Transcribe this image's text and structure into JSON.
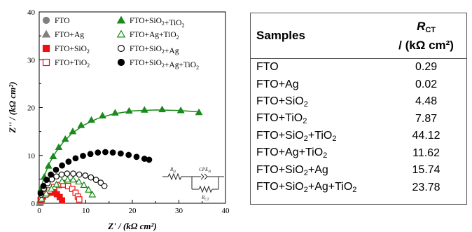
{
  "chart_data": [
    {
      "type": "scatter",
      "xlabel": "Z' / (kΩ cm²)",
      "ylabel": "Z'' / (kΩ cm²)",
      "xlim": [
        0,
        40
      ],
      "ylim": [
        0,
        40
      ],
      "x_ticks": [
        "0",
        "10",
        "20",
        "30",
        "40"
      ],
      "y_ticks": [
        "0",
        "10",
        "20",
        "30",
        "40"
      ],
      "legend_placement": "top-left",
      "inset_labels": {
        "r_s": "R",
        "r_s_sub": "Ω",
        "cpe": "CPE",
        "cpe_sub": "dl",
        "r_ct": "R",
        "r_ct_sub": "CT"
      },
      "series": [
        {
          "name": "FTO",
          "marker": "filled-circle",
          "color": "#808080",
          "x": [
            0.1,
            0.2,
            0.3,
            0.4
          ],
          "y": [
            0.05,
            0.1,
            0.1,
            0.05
          ]
        },
        {
          "name": "FTO+Ag",
          "marker": "filled-triangle",
          "color": "#808080",
          "x": [
            0.05,
            0.1,
            0.15
          ],
          "y": [
            0.02,
            0.03,
            0.02
          ]
        },
        {
          "name": "FTO+SiO₂",
          "marker": "filled-square",
          "color": "#ee1111",
          "x": [
            0.3,
            0.8,
            1.4,
            2.0,
            2.6,
            3.2,
            3.8,
            4.4,
            4.9
          ],
          "y": [
            0.7,
            1.4,
            1.9,
            2.2,
            2.3,
            2.2,
            1.9,
            1.3,
            0.6
          ]
        },
        {
          "name": "FTO+TiO₂",
          "marker": "open-square",
          "color": "#ee1111",
          "x": [
            0.5,
            1.3,
            2.2,
            3.2,
            4.2,
            5.2,
            6.2,
            7.1,
            7.8,
            8.3,
            8.6
          ],
          "y": [
            0.8,
            1.8,
            2.7,
            3.4,
            3.8,
            3.9,
            3.6,
            3.0,
            2.2,
            1.4,
            0.8
          ]
        },
        {
          "name": "FTO+SiO₂+TiO₂",
          "marker": "filled-triangle",
          "color": "#1a8a1a",
          "x": [
            0.4,
            1.1,
            2.0,
            3.0,
            4.2,
            5.6,
            7.2,
            9.0,
            11.2,
            13.6,
            16.3,
            19.3,
            22.6,
            26.4,
            30.4,
            34.3
          ],
          "y": [
            3.0,
            5.5,
            7.8,
            9.8,
            11.7,
            13.4,
            15.0,
            16.3,
            17.4,
            18.3,
            18.9,
            19.3,
            19.5,
            19.6,
            19.4,
            19.0
          ]
        },
        {
          "name": "FTO+Ag+TiO₂",
          "marker": "open-triangle",
          "color": "#1a8a1a",
          "x": [
            0.5,
            1.5,
            2.6,
            3.7,
            4.9,
            6.1,
            7.3,
            8.5,
            9.6,
            10.6,
            11.4
          ],
          "y": [
            0.9,
            2.0,
            3.0,
            3.9,
            4.6,
            4.9,
            4.9,
            4.5,
            3.8,
            2.8,
            1.8
          ]
        },
        {
          "name": "FTO+SiO₂+Ag",
          "marker": "open-circle",
          "color": "#111111",
          "x": [
            0.4,
            1.0,
            1.8,
            2.7,
            3.7,
            4.8,
            6.0,
            7.3,
            8.6,
            9.9,
            11.1,
            12.2,
            13.2,
            14.0
          ],
          "y": [
            1.8,
            3.1,
            4.2,
            5.0,
            5.6,
            6.0,
            6.2,
            6.2,
            6.0,
            5.8,
            5.4,
            4.9,
            4.3,
            3.6
          ]
        },
        {
          "name": "FTO+SiO₂+Ag+TiO₂",
          "marker": "filled-circle",
          "color": "#000000",
          "x": [
            0.3,
            0.9,
            1.6,
            2.5,
            3.6,
            4.9,
            6.3,
            7.8,
            9.4,
            11.0,
            12.6,
            14.2,
            15.8,
            17.5,
            19.2,
            20.9,
            22.6,
            23.6
          ],
          "y": [
            2.1,
            3.6,
            4.9,
            6.0,
            7.0,
            7.9,
            8.7,
            9.4,
            9.9,
            10.3,
            10.6,
            10.7,
            10.6,
            10.4,
            10.1,
            9.7,
            9.3,
            9.1
          ]
        }
      ],
      "fit_curves": [
        {
          "series": "FTO+SiO₂+TiO₂",
          "color": "#1a8a1a",
          "x": [
            0.0,
            0.5,
            1.2,
            2.2,
            3.5,
            5.0,
            7.0,
            9.5,
            12.5,
            16.0,
            20.0,
            25.0,
            30.0,
            34.3
          ],
          "y": [
            0.0,
            3.5,
            6.0,
            8.4,
            10.6,
            12.6,
            14.6,
            16.3,
            17.7,
            18.7,
            19.3,
            19.5,
            19.4,
            19.1
          ]
        },
        {
          "series": "FTO+Ag+TiO₂",
          "color": "#1a8a1a",
          "x": [
            0.0,
            1.0,
            2.5,
            4.0,
            5.5,
            7.0,
            8.5,
            9.8,
            10.8,
            11.6
          ],
          "y": [
            0.0,
            1.5,
            3.0,
            4.1,
            4.8,
            4.9,
            4.5,
            3.7,
            2.6,
            1.5
          ]
        }
      ]
    },
    {
      "type": "table",
      "columns": [
        {
          "main": "Samples"
        },
        {
          "main": "R",
          "main_sub": "CT",
          "unit": "/ (kΩ cm²)"
        }
      ],
      "rows": [
        {
          "sample": "FTO",
          "rct": "0.29"
        },
        {
          "sample": "FTO+Ag",
          "rct": "0.02"
        },
        {
          "sample": "FTO+SiO₂",
          "rct": "4.48"
        },
        {
          "sample": "FTO+TiO₂",
          "rct": "7.87"
        },
        {
          "sample": "FTO+SiO₂+TiO₂",
          "rct": "44.12"
        },
        {
          "sample": "FTO+Ag+TiO₂",
          "rct": "11.62"
        },
        {
          "sample": "FTO+SiO₂+Ag",
          "rct": "15.74"
        },
        {
          "sample": "FTO+SiO₂+Ag+TiO₂",
          "rct": "23.78"
        }
      ]
    }
  ]
}
